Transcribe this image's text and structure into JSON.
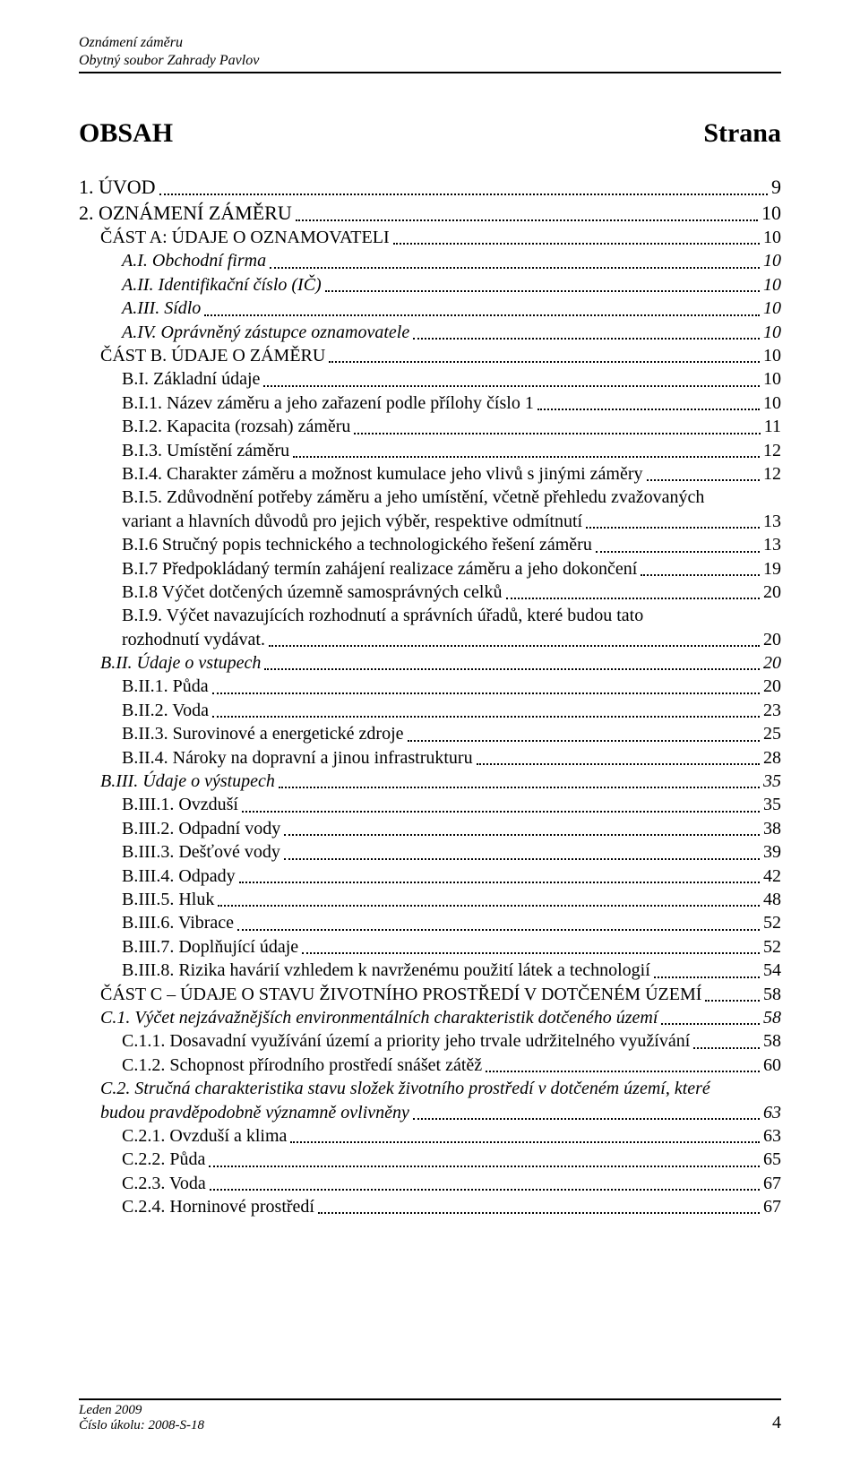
{
  "header": {
    "line1": "Oznámení záměru",
    "line2": "Obytný soubor Zahrady Pavlov"
  },
  "title": {
    "left": "OBSAH",
    "right": "Strana"
  },
  "footer": {
    "line1": "Leden 2009",
    "line2": "Číslo úkolu: 2008-S-18",
    "page": "4"
  },
  "toc": [
    {
      "lvl": 0,
      "label": "1. ÚVOD",
      "pg": "9"
    },
    {
      "lvl": 0,
      "label": "2. OZNÁMENÍ ZÁMĚRU",
      "pg": "10"
    },
    {
      "lvl": 1,
      "sc": true,
      "label": "ČÁST A: ÚDAJE O OZNAMOVATELI",
      "pg": "10"
    },
    {
      "lvl": 2,
      "italic": true,
      "label": "A.I. Obchodní firma",
      "pg": "10"
    },
    {
      "lvl": 2,
      "italic": true,
      "label": "A.II. Identifikační číslo (IČ)",
      "pg": "10"
    },
    {
      "lvl": 2,
      "italic": true,
      "label": "A.III. Sídlo",
      "pg": "10"
    },
    {
      "lvl": 2,
      "italic": true,
      "label": "A.IV. Oprávněný zástupce oznamovatele",
      "pg": "10"
    },
    {
      "lvl": 1,
      "sc": true,
      "label": "ČÁST B. ÚDAJE O ZÁMĚRU",
      "pg": "10"
    },
    {
      "lvl": 2,
      "label": "B.I. Základní údaje",
      "pg": "10"
    },
    {
      "lvl": 2,
      "label": "B.I.1. Název záměru a jeho zařazení podle přílohy číslo 1",
      "pg": "10"
    },
    {
      "lvl": 2,
      "label": "B.I.2. Kapacita (rozsah) záměru",
      "pg": "11"
    },
    {
      "lvl": 2,
      "label": "B.I.3. Umístění záměru",
      "pg": "12"
    },
    {
      "lvl": 2,
      "label": "B.I.4. Charakter záměru a možnost kumulace jeho vlivů s jinými záměry",
      "pg": "12"
    },
    {
      "lvl": 2,
      "multi": true,
      "head": "B.I.5. Zdůvodnění potřeby záměru a jeho umístění, včetně přehledu zvažovaných",
      "tail": "variant a hlavních důvodů pro jejich výběr, respektive odmítnutí",
      "pg": "13"
    },
    {
      "lvl": 2,
      "label": "B.I.6 Stručný popis technického a technologického řešení záměru",
      "pg": "13"
    },
    {
      "lvl": 2,
      "label": "B.I.7 Předpokládaný termín zahájení realizace záměru a jeho dokončení",
      "pg": "19"
    },
    {
      "lvl": 2,
      "label": "B.I.8 Výčet dotčených územně samosprávných celků",
      "pg": "20"
    },
    {
      "lvl": 2,
      "multi": true,
      "head": "B.I.9. Výčet navazujících rozhodnutí a správních úřadů, které budou tato",
      "tail": "rozhodnutí vydávat.",
      "pg": "20"
    },
    {
      "lvl": 1,
      "italic": true,
      "label": "B.II. Údaje o vstupech",
      "pg": "20"
    },
    {
      "lvl": 2,
      "label": "B.II.1. Půda",
      "pg": "20"
    },
    {
      "lvl": 2,
      "label": "B.II.2. Voda",
      "pg": "23"
    },
    {
      "lvl": 2,
      "label": "B.II.3. Surovinové a energetické zdroje",
      "pg": "25"
    },
    {
      "lvl": 2,
      "label": "B.II.4. Nároky na dopravní a jinou infrastrukturu",
      "pg": "28"
    },
    {
      "lvl": 1,
      "italic": true,
      "label": "B.III. Údaje o výstupech",
      "pg": "35"
    },
    {
      "lvl": 2,
      "label": "B.III.1. Ovzduší",
      "pg": "35"
    },
    {
      "lvl": 2,
      "label": "B.III.2. Odpadní vody",
      "pg": "38"
    },
    {
      "lvl": 2,
      "label": "B.III.3. Dešťové  vody",
      "pg": "39"
    },
    {
      "lvl": 2,
      "label": "B.III.4. Odpady",
      "pg": "42"
    },
    {
      "lvl": 2,
      "label": "B.III.5. Hluk",
      "pg": "48"
    },
    {
      "lvl": 2,
      "label": "B.III.6. Vibrace",
      "pg": "52"
    },
    {
      "lvl": 2,
      "label": "B.III.7. Doplňující údaje",
      "pg": "52"
    },
    {
      "lvl": 2,
      "label": "B.III.8. Rizika havárií vzhledem k navrženému použití látek a technologií",
      "pg": "54"
    },
    {
      "lvl": 1,
      "sc": true,
      "label": "ČÁST C – ÚDAJE O STAVU ŽIVOTNÍHO PROSTŘEDÍ V DOTČENÉM ÚZEMÍ",
      "pg": "58"
    },
    {
      "lvl": 1,
      "italic": true,
      "label": "C.1. Výčet nejzávažnějších environmentálních charakteristik dotčeného území",
      "pg": "58"
    },
    {
      "lvl": 2,
      "label": "C.1.1. Dosavadní využívání území a priority jeho trvale udržitelného využívání",
      "pg": "58"
    },
    {
      "lvl": 2,
      "label": "C.1.2. Schopnost přírodního prostředí snášet zátěž",
      "pg": "60"
    },
    {
      "lvl": 1,
      "italic": true,
      "multi": true,
      "head": "C.2. Stručná charakteristika stavu složek životního prostředí v dotčeném území, které",
      "tail": "budou pravděpodobně významně ovlivněny",
      "pg": "63"
    },
    {
      "lvl": 2,
      "label": "C.2.1. Ovzduší a klima",
      "pg": "63"
    },
    {
      "lvl": 2,
      "label": "C.2.2. Půda",
      "pg": "65"
    },
    {
      "lvl": 2,
      "label": "C.2.3. Voda",
      "pg": "67"
    },
    {
      "lvl": 2,
      "label": "C.2.4. Horninové prostředí",
      "pg": "67"
    }
  ]
}
